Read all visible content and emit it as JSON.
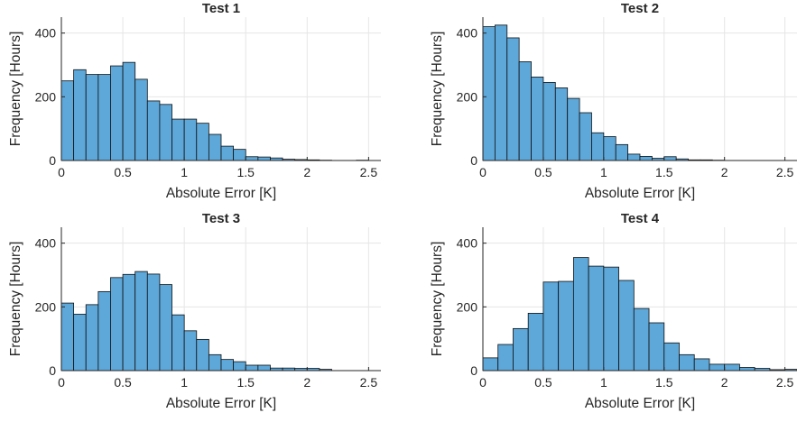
{
  "chart_data": [
    {
      "type": "histogram",
      "title": "Test 1",
      "xlabel": "Absolute Error [K]",
      "ylabel": "Frequency [Hours]",
      "xlim": [
        0,
        2.6
      ],
      "ylim": [
        0,
        450
      ],
      "xticks": [
        0,
        0.5,
        1,
        1.5,
        2,
        2.5
      ],
      "xtick_labels": [
        "0",
        "0.5",
        "1",
        "1.5",
        "2",
        "2.5"
      ],
      "yticks": [
        0,
        200,
        400
      ],
      "ytick_labels": [
        "0",
        "200",
        "400"
      ],
      "grid": true,
      "bin_width": 0.1,
      "bin_start": 0,
      "values": [
        250,
        285,
        270,
        270,
        297,
        308,
        255,
        187,
        176,
        130,
        130,
        117,
        82,
        45,
        35,
        12,
        11,
        8,
        4,
        3,
        2,
        1,
        0,
        0,
        1
      ]
    },
    {
      "type": "histogram",
      "title": "Test 2",
      "xlabel": "Absolute Error [K]",
      "ylabel": "Frequency [Hours]",
      "xlim": [
        0,
        2.6
      ],
      "ylim": [
        0,
        450
      ],
      "xticks": [
        0,
        0.5,
        1,
        1.5,
        2,
        2.5
      ],
      "xtick_labels": [
        "0",
        "0.5",
        "1",
        "1.5",
        "2",
        "2.5"
      ],
      "yticks": [
        0,
        200,
        400
      ],
      "ytick_labels": [
        "0",
        "200",
        "400"
      ],
      "grid": true,
      "bin_width": 0.1,
      "bin_start": 0,
      "values": [
        420,
        425,
        385,
        310,
        262,
        245,
        228,
        195,
        150,
        87,
        75,
        50,
        20,
        13,
        7,
        12,
        5,
        2,
        2,
        1
      ]
    },
    {
      "type": "histogram",
      "title": "Test 3",
      "xlabel": "Absolute Error [K]",
      "ylabel": "Frequency [Hours]",
      "xlim": [
        0,
        2.6
      ],
      "ylim": [
        0,
        450
      ],
      "xticks": [
        0,
        0.5,
        1,
        1.5,
        2,
        2.5
      ],
      "xtick_labels": [
        "0",
        "0.5",
        "1",
        "1.5",
        "2",
        "2.5"
      ],
      "yticks": [
        0,
        200,
        400
      ],
      "ytick_labels": [
        "0",
        "200",
        "400"
      ],
      "grid": true,
      "bin_width": 0.1,
      "bin_start": 0,
      "values": [
        212,
        177,
        207,
        248,
        292,
        302,
        311,
        303,
        270,
        175,
        125,
        98,
        50,
        35,
        28,
        17,
        17,
        8,
        8,
        7,
        7,
        4
      ]
    },
    {
      "type": "histogram",
      "title": "Test 4",
      "xlabel": "Absolute Error [K]",
      "ylabel": "Frequency [Hours]",
      "xlim": [
        0,
        2.6
      ],
      "ylim": [
        0,
        450
      ],
      "xticks": [
        0,
        0.5,
        1,
        1.5,
        2,
        2.5
      ],
      "xtick_labels": [
        "0",
        "0.5",
        "1",
        "1.5",
        "2",
        "2.5"
      ],
      "yticks": [
        0,
        200,
        400
      ],
      "ytick_labels": [
        "0",
        "200",
        "400"
      ],
      "grid": true,
      "bin_width": 0.125,
      "bin_start": 0,
      "values": [
        40,
        82,
        132,
        180,
        278,
        280,
        355,
        328,
        325,
        283,
        195,
        150,
        87,
        50,
        37,
        20,
        20,
        10,
        7,
        3,
        4
      ]
    }
  ],
  "colors": {
    "bar_fill": "#5da7d9",
    "bar_edge": "#111111",
    "axis": "#262626",
    "grid": "#e6e6e6"
  }
}
